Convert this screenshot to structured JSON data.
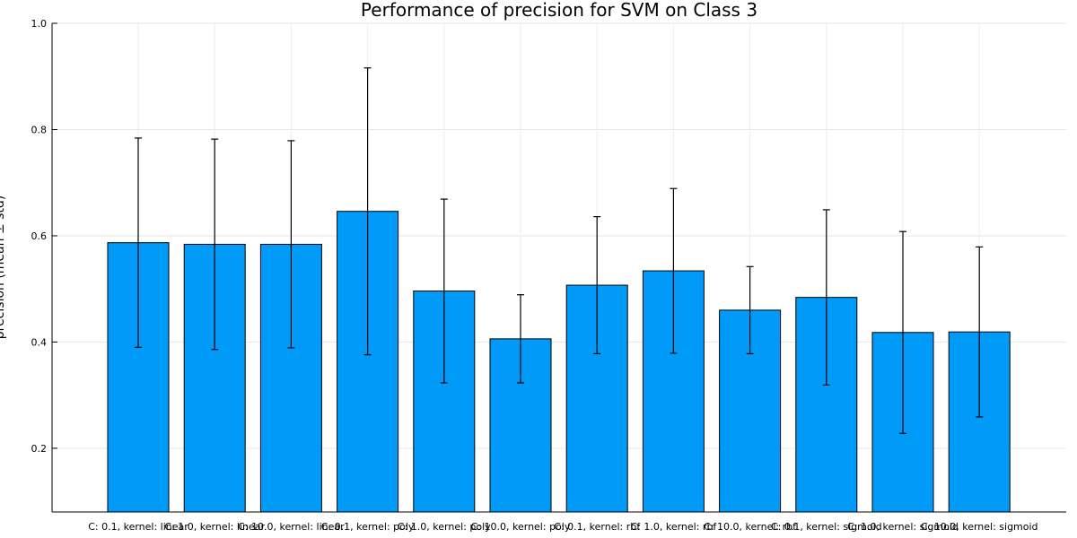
{
  "chart_data": {
    "type": "bar",
    "title": "Performance of precision for SVM on Class 3",
    "xlabel": "",
    "ylabel": "precision (mean ± std)",
    "ylim": [
      0.08,
      1.0
    ],
    "yticks": [
      "0.2",
      "0.4",
      "0.6",
      "0.8",
      "1.0"
    ],
    "grid": true,
    "legend": "none",
    "bar_color": "#009AF9",
    "categories": [
      "C: 0.1, kernel: linear",
      "C: 1.0, kernel: linear",
      "C: 10.0, kernel: linear",
      "C: 0.1, kernel: poly",
      "C: 1.0, kernel: poly",
      "C: 10.0, kernel: poly",
      "C: 0.1, kernel: rbf",
      "C: 1.0, kernel: rbf",
      "C: 10.0, kernel: rbf",
      "C: 0.1, kernel: sigmoid",
      "C: 1.0, kernel: sigmoid",
      "C: 10.0, kernel: sigmoid"
    ],
    "values": [
      0.587,
      0.584,
      0.584,
      0.646,
      0.496,
      0.406,
      0.507,
      0.534,
      0.46,
      0.484,
      0.418,
      0.419
    ],
    "error": [
      0.197,
      0.198,
      0.195,
      0.27,
      0.173,
      0.083,
      0.129,
      0.155,
      0.082,
      0.165,
      0.19,
      0.16
    ]
  }
}
